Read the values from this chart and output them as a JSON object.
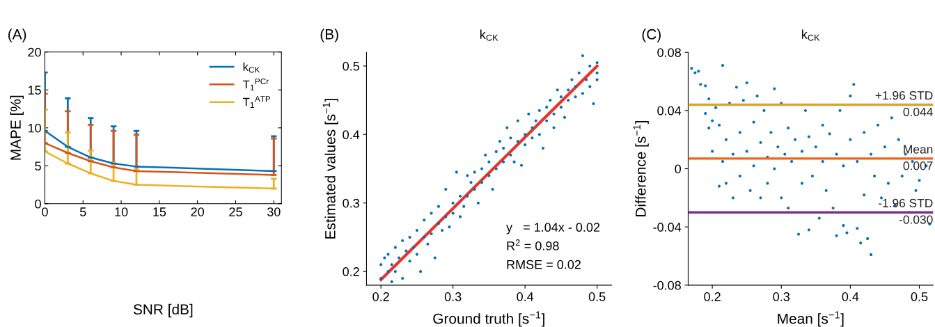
{
  "chart_data": [
    {
      "type": "line",
      "annotations": [
        "(A)"
      ],
      "xlabel": "SNR [dB]",
      "ylabel": "MAPE [%]",
      "x": [
        0,
        3,
        6,
        9,
        12,
        30
      ],
      "series": [
        {
          "name": "k$_{CK}$",
          "color": "#0072bd",
          "values": [
            9.6,
            7.5,
            6.1,
            5.3,
            4.9,
            4.3
          ],
          "errors": [
            [
              9.6,
              17.3
            ],
            [
              7.5,
              13.9
            ],
            [
              6.1,
              11.3
            ],
            [
              5.3,
              10.2
            ],
            [
              4.9,
              9.6
            ],
            [
              4.3,
              8.9
            ]
          ]
        },
        {
          "name": "T$_{1}$$^{PCr}$",
          "color": "#d95319",
          "values": [
            8.0,
            6.7,
            5.6,
            4.8,
            4.3,
            3.8
          ],
          "errors": [
            [
              8.0,
              14.5
            ],
            [
              6.7,
              12.2
            ],
            [
              5.6,
              10.4
            ],
            [
              4.8,
              9.6
            ],
            [
              4.3,
              9.1
            ],
            [
              3.8,
              8.6
            ]
          ]
        },
        {
          "name": "T$_{1}$$^{ATP}$",
          "color": "#edb120",
          "values": [
            6.9,
            5.3,
            4.0,
            3.0,
            2.5,
            2.0
          ],
          "errors": [
            [
              6.9,
              12.4
            ],
            [
              5.3,
              9.4
            ],
            [
              4.0,
              7.0
            ],
            [
              3.0,
              5.4
            ],
            [
              2.5,
              4.5
            ],
            [
              2.0,
              3.3
            ]
          ]
        }
      ],
      "xlim": [
        0,
        31
      ],
      "xticks": [
        0,
        5,
        10,
        15,
        20,
        25,
        30
      ],
      "ylim": [
        0,
        20
      ],
      "yticks": [
        0,
        5,
        10,
        15,
        20
      ],
      "legend": "top right",
      "grid": false
    },
    {
      "type": "scatter",
      "title": "k$_{CK}$",
      "annotations": [
        "(B)",
        "y   = 1.04x - 0.02",
        "R$^{2}$ = 0.98",
        "RMSE = 0.02"
      ],
      "xlabel": "Ground truth [s$^{−1}$]",
      "ylabel": "Estimated values [s$^{−1}$]",
      "series": [
        {
          "color": "#0072bd",
          "x": [
            0.2,
            0.2,
            0.205,
            0.21,
            0.21,
            0.215,
            0.215,
            0.22,
            0.22,
            0.225,
            0.23,
            0.23,
            0.235,
            0.24,
            0.24,
            0.245,
            0.25,
            0.25,
            0.255,
            0.26,
            0.26,
            0.265,
            0.27,
            0.27,
            0.275,
            0.28,
            0.28,
            0.285,
            0.29,
            0.29,
            0.295,
            0.3,
            0.3,
            0.305,
            0.31,
            0.31,
            0.315,
            0.32,
            0.32,
            0.325,
            0.33,
            0.33,
            0.335,
            0.34,
            0.34,
            0.345,
            0.35,
            0.35,
            0.355,
            0.36,
            0.36,
            0.365,
            0.37,
            0.37,
            0.375,
            0.38,
            0.38,
            0.385,
            0.39,
            0.39,
            0.395,
            0.4,
            0.4,
            0.405,
            0.41,
            0.41,
            0.415,
            0.42,
            0.42,
            0.425,
            0.43,
            0.43,
            0.435,
            0.44,
            0.44,
            0.445,
            0.45,
            0.45,
            0.455,
            0.46,
            0.46,
            0.465,
            0.47,
            0.47,
            0.475,
            0.48,
            0.48,
            0.485,
            0.49,
            0.49,
            0.495,
            0.5,
            0.5,
            0.5
          ],
          "values": [
            0.21,
            0.19,
            0.22,
            0.2,
            0.225,
            0.185,
            0.21,
            0.235,
            0.2,
            0.22,
            0.245,
            0.19,
            0.23,
            0.25,
            0.215,
            0.235,
            0.26,
            0.225,
            0.2,
            0.25,
            0.275,
            0.24,
            0.285,
            0.255,
            0.22,
            0.27,
            0.295,
            0.26,
            0.32,
            0.28,
            0.265,
            0.3,
            0.285,
            0.345,
            0.31,
            0.28,
            0.295,
            0.34,
            0.31,
            0.33,
            0.32,
            0.345,
            0.3,
            0.35,
            0.33,
            0.37,
            0.34,
            0.36,
            0.32,
            0.375,
            0.35,
            0.39,
            0.36,
            0.38,
            0.41,
            0.37,
            0.395,
            0.36,
            0.39,
            0.42,
            0.355,
            0.4,
            0.385,
            0.43,
            0.41,
            0.395,
            0.42,
            0.4,
            0.435,
            0.38,
            0.44,
            0.42,
            0.45,
            0.43,
            0.41,
            0.465,
            0.44,
            0.455,
            0.425,
            0.465,
            0.45,
            0.48,
            0.455,
            0.47,
            0.49,
            0.46,
            0.515,
            0.48,
            0.5,
            0.47,
            0.445,
            0.49,
            0.505,
            0.48
          ]
        },
        {
          "type": "line",
          "marker": "none",
          "color": "#e8342a",
          "x": [
            0.2,
            0.5
          ],
          "values": [
            0.188,
            0.5
          ]
        }
      ],
      "xlim": [
        0.18,
        0.52
      ],
      "xticks": [
        0.2,
        0.3,
        0.4,
        0.5
      ],
      "ylim": [
        0.18,
        0.52
      ],
      "yticks": [
        0.2,
        0.3,
        0.4,
        0.5
      ],
      "marker": "circle",
      "grid": false,
      "legend": false
    },
    {
      "type": "scatter",
      "title": "k$_{CK}$",
      "annotations": [
        "(C)"
      ],
      "xlabel": "Mean [s$^{−1}$]",
      "ylabel": "Difference [s$^{−1}$]",
      "series": [
        {
          "color": "#0072bd",
          "x": [
            0.17,
            0.175,
            0.18,
            0.183,
            0.19,
            0.19,
            0.195,
            0.195,
            0.2,
            0.2,
            0.205,
            0.21,
            0.21,
            0.215,
            0.215,
            0.22,
            0.22,
            0.225,
            0.23,
            0.23,
            0.235,
            0.24,
            0.24,
            0.245,
            0.25,
            0.25,
            0.255,
            0.26,
            0.26,
            0.265,
            0.27,
            0.27,
            0.275,
            0.28,
            0.28,
            0.285,
            0.29,
            0.29,
            0.295,
            0.3,
            0.3,
            0.305,
            0.31,
            0.31,
            0.315,
            0.32,
            0.325,
            0.33,
            0.33,
            0.335,
            0.34,
            0.34,
            0.345,
            0.35,
            0.355,
            0.36,
            0.36,
            0.365,
            0.37,
            0.375,
            0.38,
            0.38,
            0.385,
            0.39,
            0.39,
            0.395,
            0.4,
            0.4,
            0.405,
            0.41,
            0.41,
            0.415,
            0.42,
            0.42,
            0.425,
            0.43,
            0.43,
            0.435,
            0.44,
            0.445,
            0.45,
            0.455,
            0.46,
            0.465,
            0.47,
            0.475,
            0.48,
            0.485,
            0.49,
            0.495,
            0.5,
            0.51,
            0.515
          ],
          "values": [
            0.069,
            0.066,
            0.067,
            0.058,
            0.057,
            0.038,
            0.048,
            0.028,
            0.033,
            0.012,
            0.042,
            0.03,
            -0.012,
            0.071,
            0.005,
            0.02,
            -0.01,
            0.045,
            0.01,
            -0.02,
            0.056,
            0.025,
            -0.005,
            0.047,
            0.059,
            0.012,
            -0.015,
            0.032,
            0.002,
            0.05,
            0.018,
            -0.02,
            0.04,
            0.008,
            -0.01,
            0.025,
            0.055,
            0.0,
            0.015,
            -0.02,
            0.045,
            0.01,
            0.028,
            -0.027,
            0.005,
            0.02,
            -0.045,
            0.012,
            -0.01,
            0.04,
            -0.042,
            0.022,
            -0.005,
            0.015,
            -0.034,
            0.005,
            0.03,
            -0.015,
            0.024,
            -0.027,
            0.01,
            -0.046,
            0.04,
            0.002,
            -0.039,
            -0.044,
            0.02,
            0.05,
            0.058,
            0.005,
            -0.041,
            -0.051,
            0.025,
            -0.018,
            -0.048,
            -0.059,
            0.01,
            -0.005,
            0.03,
            -0.02,
            0.015,
            -0.01,
            0.035,
            -0.025,
            0.02,
            -0.005,
            0.01,
            -0.03,
            0.005,
            -0.015,
            -0.008,
            0.002,
            -0.038
          ]
        }
      ],
      "ref_lines": [
        {
          "axis": "y",
          "value": 0.044,
          "label": "+1.96 STD\n0.044",
          "color": "#dba52b"
        },
        {
          "axis": "y",
          "value": 0.007,
          "label": "Mean\n0.007",
          "color": "#f0641e"
        },
        {
          "axis": "y",
          "value": -0.03,
          "label": "-1.96 STD\n-0.030",
          "color": "#7e2f8e"
        }
      ],
      "xlim": [
        0.165,
        0.52
      ],
      "xticks": [
        0.2,
        0.3,
        0.4,
        0.5
      ],
      "ylim": [
        -0.08,
        0.08
      ],
      "yticks": [
        {
          "value": -0.08,
          "label": "-0.08"
        },
        {
          "value": -0.04,
          "label": "-0.04"
        },
        0,
        0.04,
        0.08
      ],
      "marker": "circle",
      "grid": false,
      "legend": false
    }
  ]
}
